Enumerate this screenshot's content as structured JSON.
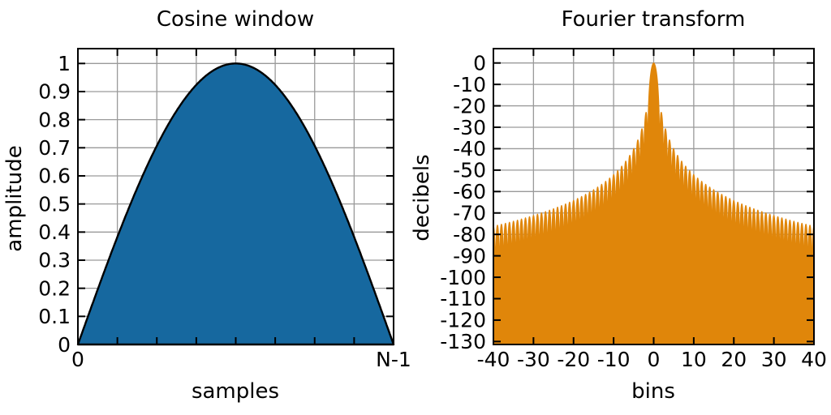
{
  "figure": {
    "background_color": "#ffffff",
    "border_color": "#000000",
    "grid_color": "#9a9a9a",
    "text_color": "#000000"
  },
  "chart_data": [
    {
      "id": "cosine-window",
      "type": "area",
      "title": "Cosine window",
      "xlabel": "samples",
      "ylabel": "amplitude",
      "fill_color": "#16689f",
      "line_color": "#000000",
      "grid": true,
      "xlim_labels": [
        "0",
        "N-1"
      ],
      "x_tick_labels": [
        {
          "frac": 0,
          "label": "0"
        },
        {
          "frac": 1,
          "label": "N-1"
        }
      ],
      "x_grid_divisions": 8,
      "ylim": [
        0,
        1.05
      ],
      "y_ticks": [
        {
          "value": 0,
          "label": "0"
        },
        {
          "value": 0.1,
          "label": "0.1"
        },
        {
          "value": 0.2,
          "label": "0.2"
        },
        {
          "value": 0.3,
          "label": "0.3"
        },
        {
          "value": 0.4,
          "label": "0.4"
        },
        {
          "value": 0.5,
          "label": "0.5"
        },
        {
          "value": 0.6,
          "label": "0.6"
        },
        {
          "value": 0.7,
          "label": "0.7"
        },
        {
          "value": 0.8,
          "label": "0.8"
        },
        {
          "value": 0.9,
          "label": "0.9"
        },
        {
          "value": 1,
          "label": "1"
        }
      ],
      "curve": {
        "kind": "half_sine",
        "formula": "w(x) = sin(π·x/(N−1))",
        "peak_amplitude": 1,
        "endpoint_amplitude": 0,
        "sample_points": {
          "x_frac": [
            0,
            0.05,
            0.1,
            0.15,
            0.2,
            0.25,
            0.3,
            0.35,
            0.4,
            0.45,
            0.5,
            0.55,
            0.6,
            0.65,
            0.7,
            0.75,
            0.8,
            0.85,
            0.9,
            0.95,
            1
          ],
          "amplitude": [
            0,
            0.156,
            0.309,
            0.454,
            0.588,
            0.707,
            0.809,
            0.891,
            0.951,
            0.988,
            1,
            0.988,
            0.951,
            0.891,
            0.809,
            0.707,
            0.588,
            0.454,
            0.309,
            0.156,
            0
          ]
        }
      }
    },
    {
      "id": "fourier-transform",
      "type": "area",
      "title": "Fourier transform",
      "xlabel": "bins",
      "ylabel": "decibels",
      "fill_color": "#e0860a",
      "grid": true,
      "xlim": [
        -40,
        40
      ],
      "x_tick_step": 10,
      "x_ticks": [
        {
          "value": -40,
          "label": "-40"
        },
        {
          "value": -30,
          "label": "-30"
        },
        {
          "value": -20,
          "label": "-20"
        },
        {
          "value": -10,
          "label": "-10"
        },
        {
          "value": 0,
          "label": "0"
        },
        {
          "value": 10,
          "label": "10"
        },
        {
          "value": 20,
          "label": "20"
        },
        {
          "value": 30,
          "label": "30"
        },
        {
          "value": 40,
          "label": "40"
        }
      ],
      "ylim_db": [
        -130,
        0
      ],
      "y_tick_step": -10,
      "y_ticks": [
        {
          "value": 0,
          "label": "0"
        },
        {
          "value": -10,
          "label": "-10"
        },
        {
          "value": -20,
          "label": "-20"
        },
        {
          "value": -30,
          "label": "-30"
        },
        {
          "value": -40,
          "label": "-40"
        },
        {
          "value": -50,
          "label": "-50"
        },
        {
          "value": -60,
          "label": "-60"
        },
        {
          "value": -70,
          "label": "-70"
        },
        {
          "value": -80,
          "label": "-80"
        },
        {
          "value": -90,
          "label": "-90"
        },
        {
          "value": -100,
          "label": "-100"
        },
        {
          "value": -110,
          "label": "-110"
        },
        {
          "value": -120,
          "label": "-120"
        },
        {
          "value": -130,
          "label": "-130"
        }
      ],
      "curve": {
        "kind": "sine_window_dtft",
        "formula": "20·log10 | cos(πf) / (1 − 4f²) |",
        "main_lobe_peak_db": 0,
        "main_lobe_peak_bin": 0,
        "first_null_bins": 1.5,
        "sidelobe_spacing_bins": 1,
        "first_sidelobe_db": -23.5,
        "clip_floor_db": -131.5,
        "envelope_peaks": [
          {
            "bin": 2,
            "db": -23.5
          },
          {
            "bin": 3,
            "db": -30.9
          },
          {
            "bin": 4,
            "db": -36.0
          },
          {
            "bin": 5,
            "db": -39.9
          },
          {
            "bin": 6,
            "db": -43.1
          },
          {
            "bin": 7,
            "db": -45.8
          },
          {
            "bin": 8,
            "db": -48.1
          },
          {
            "bin": 9,
            "db": -50.2
          },
          {
            "bin": 10,
            "db": -52.0
          },
          {
            "bin": 12,
            "db": -55.2
          },
          {
            "bin": 14,
            "db": -57.9
          },
          {
            "bin": 16,
            "db": -60.2
          },
          {
            "bin": 18,
            "db": -62.2
          },
          {
            "bin": 20,
            "db": -64.1
          },
          {
            "bin": 25,
            "db": -68.0
          },
          {
            "bin": 30,
            "db": -71.1
          },
          {
            "bin": 35,
            "db": -73.8
          },
          {
            "bin": 40,
            "db": -76.1
          }
        ]
      }
    }
  ]
}
